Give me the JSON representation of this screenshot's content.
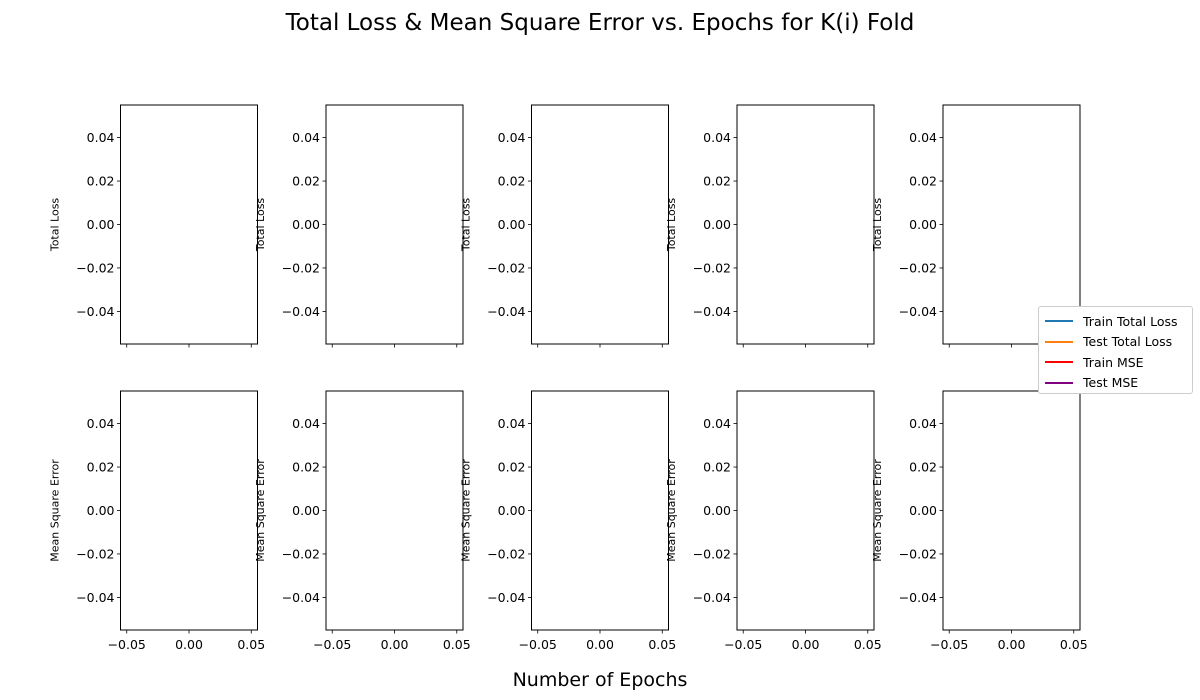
{
  "figure": {
    "title": "Total Loss & Mean Square Error vs. Epochs for K(i) Fold",
    "xlabel": "Number of Epochs"
  },
  "legend": {
    "placement": "right",
    "items": [
      {
        "label": "Train Total Loss",
        "color": "#1f77b4"
      },
      {
        "label": "Test Total Loss",
        "color": "#ff7f0e"
      },
      {
        "label": "Train MSE",
        "color": "#ff0000"
      },
      {
        "label": "Test MSE",
        "color": "#800080"
      }
    ]
  },
  "chart_data": {
    "type": "line",
    "grid": false,
    "layout": {
      "rows": 2,
      "cols": 5,
      "sharex": true
    },
    "xlim": [
      -0.055,
      0.055
    ],
    "xticks": [
      -0.05,
      0.0,
      0.05
    ],
    "xtick_labels": [
      "−0.05",
      "0.00",
      "0.05"
    ],
    "ylim": [
      -0.055,
      0.055
    ],
    "yticks": [
      0.04,
      0.02,
      0.0,
      -0.02,
      -0.04
    ],
    "ytick_labels": [
      "0.04",
      "0.02",
      "0.00",
      "−0.02",
      "−0.04"
    ],
    "row_ylabels": [
      "Total Loss",
      "Mean Square Error"
    ],
    "series": [
      {
        "name": "Train Total Loss",
        "row": 0,
        "x": [],
        "y": []
      },
      {
        "name": "Test Total Loss",
        "row": 0,
        "x": [],
        "y": []
      },
      {
        "name": "Train MSE",
        "row": 1,
        "x": [],
        "y": []
      },
      {
        "name": "Test MSE",
        "row": 1,
        "x": [],
        "y": []
      }
    ]
  }
}
